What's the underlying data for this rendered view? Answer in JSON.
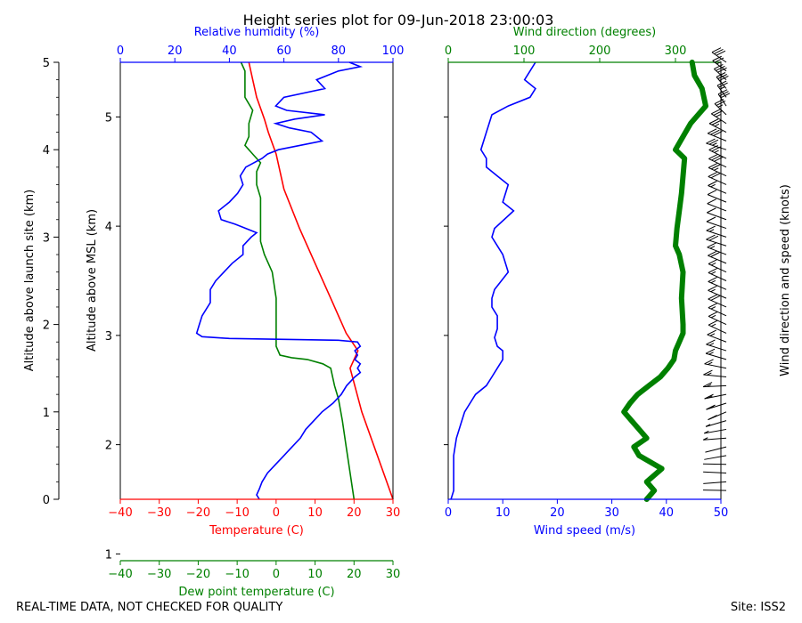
{
  "title": "Height series plot for 09-Jun-2018 23:00:03",
  "footer_left": "REAL-TIME DATA, NOT CHECKED FOR QUALITY",
  "footer_right": "Site: ISS2",
  "colors": {
    "temperature": "#ff0000",
    "dewpoint": "#008000",
    "rh": "#0000ff",
    "wind_speed": "#0000ff",
    "wind_dir": "#008000",
    "barbs": "#000000"
  },
  "chart_data": [
    {
      "type": "line",
      "title": "Height series plot for 09-Jun-2018 23:00:03",
      "ylabel_left": "Altitude above launch site (km)",
      "ylabel_inner": "Altitude above MSL (km)",
      "ylim_launch": [
        0,
        5
      ],
      "yticks_launch": [
        "0",
        "1",
        "2",
        "3",
        "4",
        "5"
      ],
      "ylim_msl": [
        1.5,
        5.5
      ],
      "yticks_msl": [
        "1",
        "2",
        "3",
        "4",
        "5"
      ],
      "axes": {
        "temperature": {
          "label": "Temperature (C)",
          "range": [
            -40,
            30
          ],
          "ticks": [
            "−40",
            "−30",
            "−20",
            "−10",
            "0",
            "10",
            "20",
            "30"
          ]
        },
        "dewpoint": {
          "label": "Dew point temperature (C)",
          "range": [
            -40,
            30
          ],
          "ticks": [
            "−40",
            "−30",
            "−20",
            "−10",
            "0",
            "10",
            "20",
            "30"
          ]
        },
        "rh": {
          "label": "Relative humidity (%)",
          "range": [
            0,
            100
          ],
          "ticks": [
            "0",
            "20",
            "40",
            "60",
            "80",
            "100"
          ]
        }
      },
      "series": [
        {
          "name": "Temperature",
          "axis": "temperature",
          "unit": "C",
          "points": [
            [
              30,
              0
            ],
            [
              26,
              0.5
            ],
            [
              22,
              1.0
            ],
            [
              19,
              1.5
            ],
            [
              20,
              1.6
            ],
            [
              21,
              1.7
            ],
            [
              18,
              1.9
            ],
            [
              14,
              2.3
            ],
            [
              10,
              2.7
            ],
            [
              6,
              3.1
            ],
            [
              2,
              3.55
            ],
            [
              0,
              3.95
            ],
            [
              -2,
              4.2
            ],
            [
              -3,
              4.35
            ],
            [
              -5,
              4.6
            ],
            [
              -6,
              4.8
            ],
            [
              -7,
              5.0
            ]
          ]
        },
        {
          "name": "Dew point",
          "axis": "dewpoint",
          "unit": "C",
          "points": [
            [
              20,
              0
            ],
            [
              19,
              0.3
            ],
            [
              18,
              0.6
            ],
            [
              17,
              0.9
            ],
            [
              16,
              1.15
            ],
            [
              15,
              1.3
            ],
            [
              14,
              1.5
            ],
            [
              12,
              1.55
            ],
            [
              8,
              1.6
            ],
            [
              4,
              1.62
            ],
            [
              1,
              1.65
            ],
            [
              0,
              1.75
            ],
            [
              0,
              2.0
            ],
            [
              0,
              2.3
            ],
            [
              -1,
              2.6
            ],
            [
              -3,
              2.8
            ],
            [
              -4,
              2.95
            ],
            [
              -4,
              3.2
            ],
            [
              -4,
              3.45
            ],
            [
              -5,
              3.6
            ],
            [
              -5,
              3.75
            ],
            [
              -4,
              3.85
            ],
            [
              -6,
              3.95
            ],
            [
              -8,
              4.05
            ],
            [
              -7,
              4.15
            ],
            [
              -7,
              4.3
            ],
            [
              -6,
              4.45
            ],
            [
              -8,
              4.6
            ],
            [
              -8,
              4.75
            ],
            [
              -8,
              4.9
            ],
            [
              -9,
              5.0
            ]
          ]
        },
        {
          "name": "Relative humidity",
          "axis": "rh",
          "unit": "%",
          "points": [
            [
              51,
              0
            ],
            [
              50,
              0.05
            ],
            [
              51,
              0.12
            ],
            [
              52,
              0.2
            ],
            [
              54,
              0.3
            ],
            [
              57,
              0.4
            ],
            [
              60,
              0.5
            ],
            [
              63,
              0.6
            ],
            [
              66,
              0.7
            ],
            [
              68,
              0.8
            ],
            [
              71,
              0.9
            ],
            [
              74,
              1.0
            ],
            [
              78,
              1.1
            ],
            [
              81,
              1.2
            ],
            [
              83,
              1.3
            ],
            [
              86,
              1.4
            ],
            [
              88,
              1.45
            ],
            [
              87,
              1.5
            ],
            [
              88,
              1.55
            ],
            [
              86,
              1.6
            ],
            [
              87,
              1.65
            ],
            [
              86,
              1.7
            ],
            [
              88,
              1.75
            ],
            [
              87,
              1.8
            ],
            [
              80,
              1.82
            ],
            [
              40,
              1.84
            ],
            [
              30,
              1.86
            ],
            [
              28,
              1.9
            ],
            [
              29,
              2.0
            ],
            [
              30,
              2.1
            ],
            [
              33,
              2.25
            ],
            [
              33,
              2.4
            ],
            [
              35,
              2.5
            ],
            [
              38,
              2.6
            ],
            [
              41,
              2.7
            ],
            [
              45,
              2.8
            ],
            [
              45,
              2.9
            ],
            [
              48,
              3.0
            ],
            [
              50,
              3.05
            ],
            [
              46,
              3.1
            ],
            [
              42,
              3.15
            ],
            [
              37,
              3.2
            ],
            [
              36,
              3.3
            ],
            [
              40,
              3.4
            ],
            [
              43,
              3.5
            ],
            [
              45,
              3.6
            ],
            [
              44,
              3.7
            ],
            [
              46,
              3.8
            ],
            [
              52,
              3.9
            ],
            [
              54,
              3.95
            ],
            [
              58,
              4.0
            ],
            [
              66,
              4.05
            ],
            [
              74,
              4.1
            ],
            [
              70,
              4.2
            ],
            [
              62,
              4.25
            ],
            [
              57,
              4.3
            ],
            [
              64,
              4.35
            ],
            [
              75,
              4.4
            ],
            [
              61,
              4.45
            ],
            [
              57,
              4.5
            ],
            [
              60,
              4.6
            ],
            [
              75,
              4.7
            ],
            [
              72,
              4.8
            ],
            [
              80,
              4.9
            ],
            [
              88,
              4.95
            ],
            [
              84,
              5.0
            ]
          ]
        }
      ]
    },
    {
      "type": "line",
      "xlabel_bottom": "Wind speed (m/s)",
      "xlabel_top": "Wind direction (degrees)",
      "ylabel_right": "Wind direction and speed (knots)",
      "ylim": [
        0,
        5
      ],
      "axes": {
        "wind_speed": {
          "label": "Wind speed (m/s)",
          "range": [
            0,
            50
          ],
          "ticks": [
            "0",
            "10",
            "20",
            "30",
            "40",
            "50"
          ]
        },
        "wind_dir": {
          "label": "Wind direction (degrees)",
          "range": [
            0,
            360
          ],
          "ticks": [
            "0",
            "100",
            "200",
            "300"
          ]
        }
      },
      "series": [
        {
          "name": "Wind speed",
          "axis": "wind_speed",
          "unit": "m/s",
          "points": [
            [
              0.5,
              0
            ],
            [
              1,
              0.1
            ],
            [
              1,
              0.3
            ],
            [
              1,
              0.5
            ],
            [
              1.5,
              0.7
            ],
            [
              2.5,
              0.9
            ],
            [
              3,
              1.0
            ],
            [
              4,
              1.1
            ],
            [
              5,
              1.2
            ],
            [
              7,
              1.3
            ],
            [
              8,
              1.4
            ],
            [
              9,
              1.5
            ],
            [
              10,
              1.6
            ],
            [
              10,
              1.7
            ],
            [
              9,
              1.75
            ],
            [
              8.5,
              1.85
            ],
            [
              9,
              1.95
            ],
            [
              9,
              2.1
            ],
            [
              8,
              2.2
            ],
            [
              8,
              2.3
            ],
            [
              8.5,
              2.4
            ],
            [
              11,
              2.6
            ],
            [
              10,
              2.8
            ],
            [
              9,
              2.9
            ],
            [
              8,
              3.0
            ],
            [
              8.5,
              3.1
            ],
            [
              12,
              3.3
            ],
            [
              10,
              3.4
            ],
            [
              11,
              3.6
            ],
            [
              9,
              3.7
            ],
            [
              7,
              3.8
            ],
            [
              7,
              3.9
            ],
            [
              6,
              4.0
            ],
            [
              7,
              4.2
            ],
            [
              8,
              4.4
            ],
            [
              11,
              4.5
            ],
            [
              15,
              4.6
            ],
            [
              16,
              4.7
            ],
            [
              14,
              4.8
            ],
            [
              15,
              4.9
            ],
            [
              16,
              5.0
            ]
          ]
        },
        {
          "name": "Wind direction",
          "axis": "wind_dir",
          "unit": "degrees",
          "points": [
            [
              262,
              0
            ],
            [
              272,
              0.1
            ],
            [
              262,
              0.2
            ],
            [
              282,
              0.35
            ],
            [
              252,
              0.5
            ],
            [
              245,
              0.6
            ],
            [
              262,
              0.7
            ],
            [
              252,
              0.8
            ],
            [
              242,
              0.9
            ],
            [
              232,
              1.0
            ],
            [
              240,
              1.1
            ],
            [
              250,
              1.2
            ],
            [
              265,
              1.3
            ],
            [
              280,
              1.4
            ],
            [
              290,
              1.5
            ],
            [
              298,
              1.6
            ],
            [
              300,
              1.7
            ],
            [
              305,
              1.8
            ],
            [
              310,
              1.9
            ],
            [
              310,
              2.0
            ],
            [
              308,
              2.3
            ],
            [
              310,
              2.6
            ],
            [
              305,
              2.8
            ],
            [
              300,
              2.9
            ],
            [
              302,
              3.1
            ],
            [
              305,
              3.3
            ],
            [
              308,
              3.5
            ],
            [
              310,
              3.7
            ],
            [
              312,
              3.9
            ],
            [
              300,
              4.0
            ],
            [
              320,
              4.3
            ],
            [
              340,
              4.5
            ],
            [
              335,
              4.7
            ],
            [
              325,
              4.85
            ],
            [
              322,
              5.0
            ]
          ]
        },
        {
          "name": "Wind barbs",
          "unit": "knots",
          "levels_km": [
            0.1,
            0.2,
            0.3,
            0.4,
            0.5,
            0.6,
            0.7,
            0.8,
            0.9,
            1.0,
            1.1,
            1.2,
            1.3,
            1.4,
            1.5,
            1.6,
            1.7,
            1.8,
            1.9,
            2.0,
            2.1,
            2.2,
            2.3,
            2.4,
            2.5,
            2.6,
            2.7,
            2.8,
            2.9,
            3.0,
            3.1,
            3.2,
            3.3,
            3.4,
            3.5,
            3.6,
            3.7,
            3.8,
            3.9,
            4.0,
            4.1,
            4.2,
            4.3,
            4.4,
            4.5,
            4.6,
            4.7,
            4.8,
            4.9,
            5.0
          ],
          "speeds_ms": [
            1,
            1,
            1,
            1,
            2,
            2,
            3,
            4,
            5,
            7,
            8,
            9,
            10,
            10,
            9,
            9,
            9,
            8,
            8,
            8,
            9,
            11,
            10,
            9,
            8,
            9,
            12,
            10,
            11,
            9,
            7,
            7,
            6,
            7,
            8,
            11,
            15,
            16,
            14,
            15,
            16,
            15,
            14,
            15,
            16,
            15,
            16,
            16,
            15,
            16
          ]
        }
      ]
    }
  ]
}
